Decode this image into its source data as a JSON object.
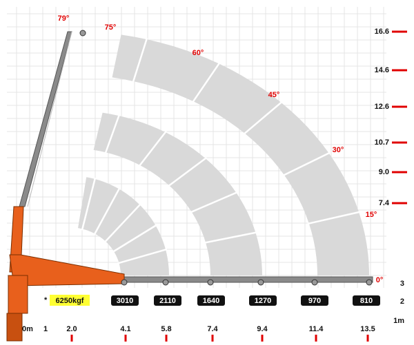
{
  "angles": [
    "79°",
    "75°",
    "60°",
    "45°",
    "30°",
    "15°",
    "0°"
  ],
  "heights": [
    "16.6",
    "14.6",
    "12.6",
    "10.7",
    "9.0",
    "7.4",
    "3",
    "2",
    "1m"
  ],
  "distances": [
    "0m",
    "1",
    "2.0",
    "4.1",
    "5.8",
    "7.4",
    "9.4",
    "11.4",
    "13.5"
  ],
  "loads": [
    "3010",
    "2110",
    "1640",
    "1270",
    "970",
    "810"
  ],
  "note": {
    "mark": "*",
    "load": "6250kgf"
  }
}
